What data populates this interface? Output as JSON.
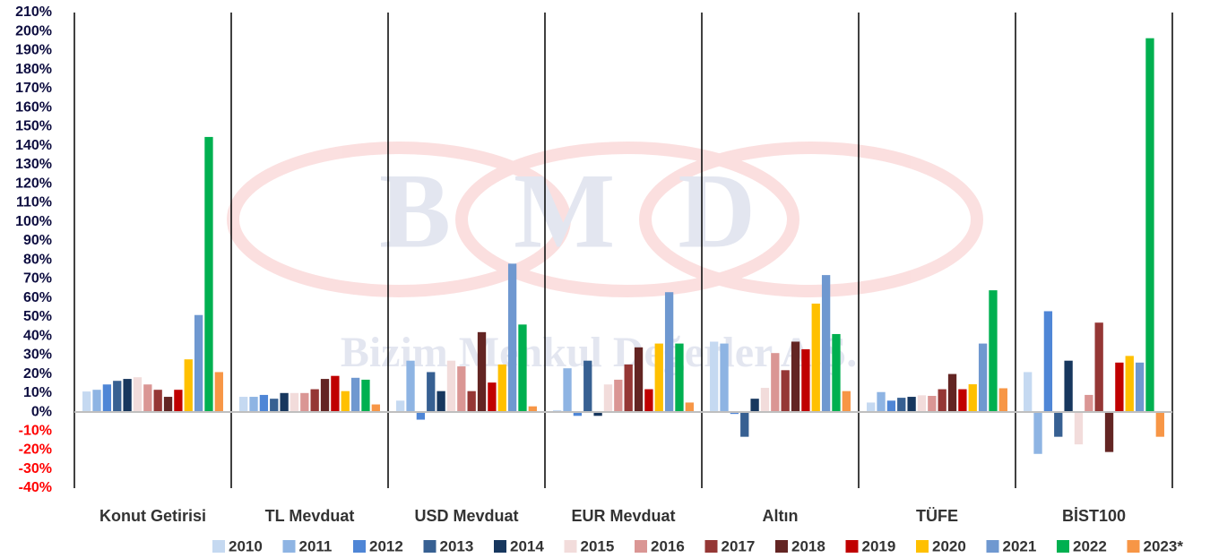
{
  "chart_data": {
    "type": "bar",
    "watermark": [
      "BMD",
      "Bizim Menkul Değerler A.Ş."
    ],
    "categories": [
      "Konut Getirisi",
      "TL Mevduat",
      "USD Mevduat",
      "EUR Mevduat",
      "Altın",
      "TÜFE",
      "BİST100"
    ],
    "series": [
      {
        "name": "2010",
        "color": "#c5d9f1",
        "values": [
          10.8,
          8,
          6,
          1,
          37,
          5,
          21
        ]
      },
      {
        "name": "2011",
        "color": "#8eb4e3",
        "values": [
          11.7,
          8,
          27,
          23,
          36,
          10.5,
          -22
        ]
      },
      {
        "name": "2012",
        "color": "#4f86d6",
        "values": [
          14.5,
          9,
          -4,
          -2,
          -1,
          6,
          53
        ]
      },
      {
        "name": "2013",
        "color": "#376092",
        "values": [
          16.4,
          7,
          21,
          27,
          -13,
          7.5,
          -13
        ]
      },
      {
        "name": "2014",
        "color": "#17375e",
        "values": [
          17.4,
          10,
          11,
          -2,
          7,
          8,
          27
        ]
      },
      {
        "name": "2015",
        "color": "#f2dcdb",
        "values": [
          18.3,
          10,
          27,
          14.5,
          12.7,
          8.8,
          -17
        ]
      },
      {
        "name": "2016",
        "color": "#da9694",
        "values": [
          14.5,
          10,
          24,
          17,
          31,
          8.5,
          9
        ]
      },
      {
        "name": "2017",
        "color": "#953735",
        "values": [
          11.7,
          12,
          11,
          25,
          22,
          12,
          47
        ]
      },
      {
        "name": "2018",
        "color": "#632523",
        "values": [
          8,
          17.4,
          42,
          34,
          37,
          20,
          -21
        ]
      },
      {
        "name": "2019",
        "color": "#c00000",
        "values": [
          11.7,
          19,
          15.5,
          12,
          33,
          12,
          26
        ]
      },
      {
        "name": "2020",
        "color": "#ffc000",
        "values": [
          27.7,
          11,
          25,
          36,
          57,
          14.6,
          29.5
        ]
      },
      {
        "name": "2021",
        "color": "#6f98d0",
        "values": [
          51,
          18,
          78,
          63,
          72,
          36,
          26
        ]
      },
      {
        "name": "2022",
        "color": "#00b050",
        "values": [
          144.6,
          17,
          46,
          36,
          41,
          64,
          196.5
        ]
      },
      {
        "name": "2023*",
        "color": "#f79646",
        "values": [
          21,
          4,
          3,
          5,
          11,
          12.5,
          -13
        ]
      }
    ],
    "ylim": [
      -40,
      210
    ],
    "yticks": [
      {
        "value": -40,
        "label": "-40%"
      },
      {
        "value": -30,
        "label": "-30%"
      },
      {
        "value": -20,
        "label": "-20%"
      },
      {
        "value": -10,
        "label": "-10%"
      },
      {
        "value": 0,
        "label": "0%"
      },
      {
        "value": 10,
        "label": "10%"
      },
      {
        "value": 20,
        "label": "20%"
      },
      {
        "value": 30,
        "label": "30%"
      },
      {
        "value": 40,
        "label": "40%"
      },
      {
        "value": 50,
        "label": "50%"
      },
      {
        "value": 60,
        "label": "60%"
      },
      {
        "value": 70,
        "label": "70%"
      },
      {
        "value": 80,
        "label": "80%"
      },
      {
        "value": 90,
        "label": "90%"
      },
      {
        "value": 100,
        "label": "100%"
      },
      {
        "value": 110,
        "label": "110%"
      },
      {
        "value": 120,
        "label": "120%"
      },
      {
        "value": 130,
        "label": "130%"
      },
      {
        "value": 140,
        "label": "140%"
      },
      {
        "value": 150,
        "label": "150%"
      },
      {
        "value": 160,
        "label": "160%"
      },
      {
        "value": 170,
        "label": "170%"
      },
      {
        "value": 180,
        "label": "180%"
      },
      {
        "value": 190,
        "label": "190%"
      },
      {
        "value": 200,
        "label": "200%"
      },
      {
        "value": 210,
        "label": "210%"
      }
    ],
    "tick_color": "#0d0d40",
    "negative_tick_color": "#ff0000",
    "grid": false,
    "legend": "bottom"
  }
}
